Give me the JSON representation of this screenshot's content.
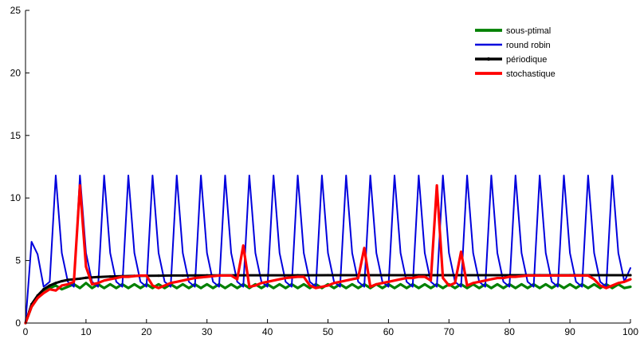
{
  "chart_data": {
    "type": "line",
    "title": "",
    "xlabel": "",
    "ylabel": "",
    "xlim": [
      0,
      100
    ],
    "ylim": [
      0,
      25
    ],
    "xticks": [
      "0",
      "10",
      "20",
      "30",
      "40",
      "50",
      "60",
      "70",
      "80",
      "90",
      "100"
    ],
    "yticks": [
      "0",
      "5",
      "10",
      "15",
      "20",
      "25"
    ],
    "grid": false,
    "legend_position": "top-right",
    "series": [
      {
        "name": "sous-ptimal",
        "color": "#008000",
        "x": [
          0,
          1,
          2,
          3,
          4,
          5,
          6,
          7,
          8,
          9,
          10,
          11,
          12,
          13,
          14,
          15,
          16,
          17,
          18,
          19,
          20,
          21,
          22,
          23,
          24,
          25,
          26,
          27,
          28,
          29,
          30,
          31,
          32,
          33,
          34,
          35,
          36,
          37,
          38,
          39,
          40,
          41,
          42,
          43,
          44,
          45,
          46,
          47,
          48,
          49,
          50,
          51,
          52,
          53,
          54,
          55,
          56,
          57,
          58,
          59,
          60,
          61,
          62,
          63,
          64,
          65,
          66,
          67,
          68,
          69,
          70,
          71,
          72,
          73,
          74,
          75,
          76,
          77,
          78,
          79,
          80,
          81,
          82,
          83,
          84,
          85,
          86,
          87,
          88,
          89,
          90,
          91,
          92,
          93,
          94,
          95,
          96,
          97,
          98,
          99,
          100
        ],
        "y": [
          0,
          1.3,
          2.0,
          2.5,
          2.8,
          3.0,
          2.7,
          2.9,
          3.1,
          2.8,
          3.2,
          2.8,
          3.1,
          2.8,
          3.1,
          2.8,
          3.1,
          2.8,
          3.1,
          2.8,
          3.1,
          2.8,
          3.1,
          2.8,
          3.1,
          2.8,
          3.1,
          2.8,
          3.1,
          2.8,
          3.1,
          2.8,
          3.1,
          2.8,
          3.1,
          2.8,
          3.1,
          2.8,
          3.1,
          2.8,
          3.1,
          2.8,
          3.1,
          2.8,
          3.1,
          2.8,
          3.1,
          2.8,
          3.1,
          2.8,
          3.1,
          2.8,
          3.1,
          2.8,
          3.1,
          2.8,
          3.1,
          2.8,
          3.1,
          2.8,
          3.1,
          2.8,
          3.1,
          2.8,
          3.1,
          2.8,
          3.1,
          2.8,
          3.1,
          2.8,
          3.1,
          2.8,
          3.1,
          2.8,
          3.1,
          2.8,
          3.1,
          2.8,
          3.1,
          2.8,
          3.1,
          2.8,
          3.1,
          2.8,
          3.1,
          2.8,
          3.1,
          2.8,
          3.1,
          2.8,
          3.1,
          2.8,
          3.1,
          2.8,
          3.1,
          2.8,
          3.1,
          2.8,
          3.1,
          2.8,
          2.9
        ]
      },
      {
        "name": "round robin",
        "color": "#0000dd",
        "x": [
          0,
          1,
          2,
          3,
          4,
          5,
          6,
          7,
          8,
          9,
          10,
          11,
          12,
          13,
          14,
          15,
          16,
          17,
          18,
          19,
          20,
          21,
          22,
          23,
          24,
          25,
          26,
          27,
          28,
          29,
          30,
          31,
          32,
          33,
          34,
          35,
          36,
          37,
          38,
          39,
          40,
          41,
          42,
          43,
          44,
          45,
          46,
          47,
          48,
          49,
          50,
          51,
          52,
          53,
          54,
          55,
          56,
          57,
          58,
          59,
          60,
          61,
          62,
          63,
          64,
          65,
          66,
          67,
          68,
          69,
          70,
          71,
          72,
          73,
          74,
          75,
          76,
          77,
          78,
          79,
          80,
          81,
          82,
          83,
          84,
          85,
          86,
          87,
          88,
          89,
          90,
          91,
          92,
          93,
          94,
          95,
          96,
          97,
          98,
          99,
          100
        ],
        "y": [
          0,
          6.5,
          5.5,
          2.9,
          3.3,
          11.8,
          5.6,
          3.3,
          2.9,
          11.8,
          5.6,
          3.3,
          2.9,
          11.8,
          5.6,
          3.3,
          2.9,
          11.8,
          5.6,
          3.3,
          2.9,
          11.8,
          5.6,
          3.3,
          2.9,
          11.8,
          5.6,
          3.3,
          2.9,
          11.8,
          5.6,
          3.3,
          2.9,
          11.8,
          5.6,
          3.3,
          2.9,
          11.8,
          5.6,
          3.3,
          2.9,
          11.8,
          5.6,
          3.3,
          2.9,
          11.8,
          5.6,
          3.3,
          2.9,
          11.8,
          5.6,
          3.3,
          2.9,
          11.8,
          5.6,
          3.3,
          2.9,
          11.8,
          5.6,
          3.3,
          2.9,
          11.8,
          5.6,
          3.3,
          2.9,
          11.8,
          5.6,
          3.3,
          2.9,
          11.8,
          5.6,
          3.3,
          2.9,
          11.8,
          5.6,
          3.3,
          2.9,
          11.8,
          5.6,
          3.3,
          2.9,
          11.8,
          5.6,
          3.3,
          2.9,
          11.8,
          5.6,
          3.3,
          2.9,
          11.8,
          5.6,
          3.3,
          2.9,
          11.8,
          5.6,
          3.3,
          2.9,
          11.8,
          5.6,
          3.3,
          4.4
        ]
      },
      {
        "name": "périodique",
        "color": "#000000",
        "x": [
          0,
          1,
          2,
          3,
          4,
          5,
          6,
          7,
          8,
          9,
          10,
          12,
          14,
          16,
          18,
          20,
          22,
          24,
          26,
          28,
          30,
          35,
          40,
          45,
          50,
          55,
          60,
          65,
          70,
          75,
          80,
          85,
          90,
          95,
          100
        ],
        "y": [
          0,
          1.5,
          2.2,
          2.7,
          3.0,
          3.2,
          3.35,
          3.45,
          3.5,
          3.55,
          3.62,
          3.68,
          3.72,
          3.75,
          3.77,
          3.78,
          3.79,
          3.8,
          3.8,
          3.81,
          3.81,
          3.82,
          3.82,
          3.82,
          3.83,
          3.83,
          3.83,
          3.83,
          3.83,
          3.83,
          3.83,
          3.83,
          3.83,
          3.83,
          3.83
        ]
      },
      {
        "name": "stochastique",
        "color": "#ff0000",
        "x": [
          0,
          1,
          2,
          3,
          4,
          5,
          6,
          7,
          8,
          9,
          10,
          11,
          12,
          13,
          14,
          15,
          16,
          17,
          18,
          19,
          20,
          21,
          22,
          23,
          24,
          25,
          26,
          27,
          28,
          29,
          30,
          31,
          32,
          33,
          34,
          35,
          36,
          37,
          38,
          39,
          40,
          41,
          42,
          43,
          44,
          45,
          46,
          47,
          48,
          49,
          50,
          51,
          52,
          53,
          54,
          55,
          56,
          57,
          58,
          59,
          60,
          61,
          62,
          63,
          64,
          65,
          66,
          67,
          68,
          69,
          70,
          71,
          72,
          73,
          74,
          75,
          76,
          77,
          78,
          79,
          80,
          81,
          82,
          83,
          84,
          85,
          86,
          87,
          88,
          89,
          90,
          91,
          92,
          93,
          94,
          95,
          96,
          97,
          98,
          99,
          100
        ],
        "y": [
          0,
          1.3,
          2.0,
          2.4,
          2.7,
          2.6,
          3.0,
          3.1,
          3.3,
          11.0,
          4.5,
          3.1,
          3.2,
          3.4,
          3.5,
          3.6,
          3.7,
          3.7,
          3.75,
          3.8,
          3.8,
          3.0,
          2.8,
          3.0,
          3.2,
          3.3,
          3.4,
          3.5,
          3.6,
          3.65,
          3.7,
          3.75,
          3.8,
          3.8,
          3.8,
          3.5,
          6.2,
          2.9,
          3.0,
          3.2,
          3.3,
          3.4,
          3.5,
          3.6,
          3.65,
          3.7,
          3.7,
          3.0,
          2.8,
          2.9,
          3.0,
          3.2,
          3.3,
          3.4,
          3.5,
          3.6,
          6.0,
          2.9,
          3.1,
          3.2,
          3.3,
          3.4,
          3.5,
          3.6,
          3.6,
          3.7,
          3.7,
          3.4,
          11.0,
          3.6,
          3.0,
          3.2,
          5.7,
          3.0,
          3.2,
          3.3,
          3.4,
          3.5,
          3.6,
          3.6,
          3.7,
          3.7,
          3.75,
          3.8,
          3.8,
          3.8,
          3.8,
          3.8,
          3.8,
          3.8,
          3.8,
          3.8,
          3.8,
          3.8,
          3.5,
          3.0,
          2.8,
          3.0,
          3.2,
          3.3,
          3.5
        ]
      }
    ]
  }
}
